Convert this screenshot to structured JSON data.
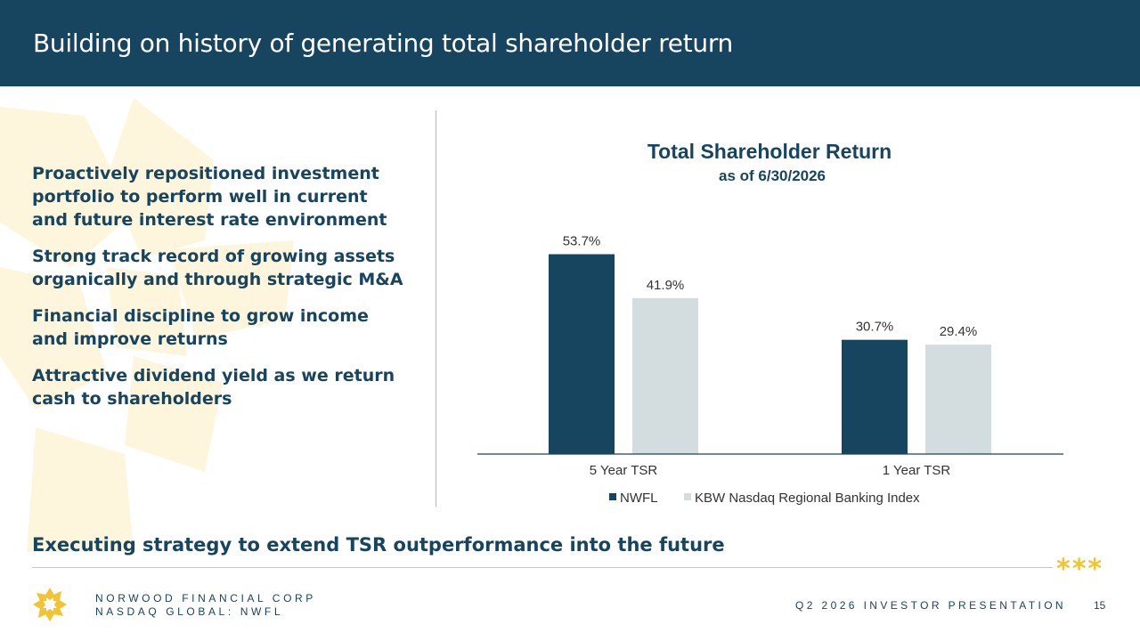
{
  "slide": {
    "title": "Building on history of generating total shareholder return",
    "bullets": [
      "Proactively repositioned investment portfolio to perform well in current and future interest rate environment",
      "Strong track record of growing assets organically and through strategic M&A",
      "Financial discipline to grow income and improve returns",
      "Attractive dividend yield as we return cash to shareholders"
    ],
    "tagline": "Executing strategy to extend TSR outperformance into the future",
    "stars": "***"
  },
  "footer": {
    "company_line1": "NORWOOD FINANCIAL CORP",
    "company_line2": "NASDAQ GLOBAL: NWFL",
    "presentation": "Q2 2026 INVESTOR PRESENTATION",
    "page": "15"
  },
  "colors": {
    "brand_navy": "#17445f",
    "index_gray": "#d3dcdf",
    "gold": "#f2c434",
    "background_mark": "#fdf6dd"
  },
  "chart_data": {
    "type": "bar",
    "title": "Total Shareholder Return",
    "subtitle": "as of 6/30/2026",
    "categories": [
      "5 Year TSR",
      "1 Year TSR"
    ],
    "series": [
      {
        "name": "NWFL",
        "values": [
          53.7,
          30.7
        ],
        "labels": [
          "53.7%",
          "30.7%"
        ],
        "color": "#17445f"
      },
      {
        "name": "KBW Nasdaq Regional Banking Index",
        "values": [
          41.9,
          29.4
        ],
        "labels": [
          "41.9%",
          "29.4%"
        ],
        "color": "#d3dcdf"
      }
    ],
    "ylim": [
      0,
      60
    ],
    "unit": "%",
    "grid": false,
    "legend": "bottom"
  }
}
